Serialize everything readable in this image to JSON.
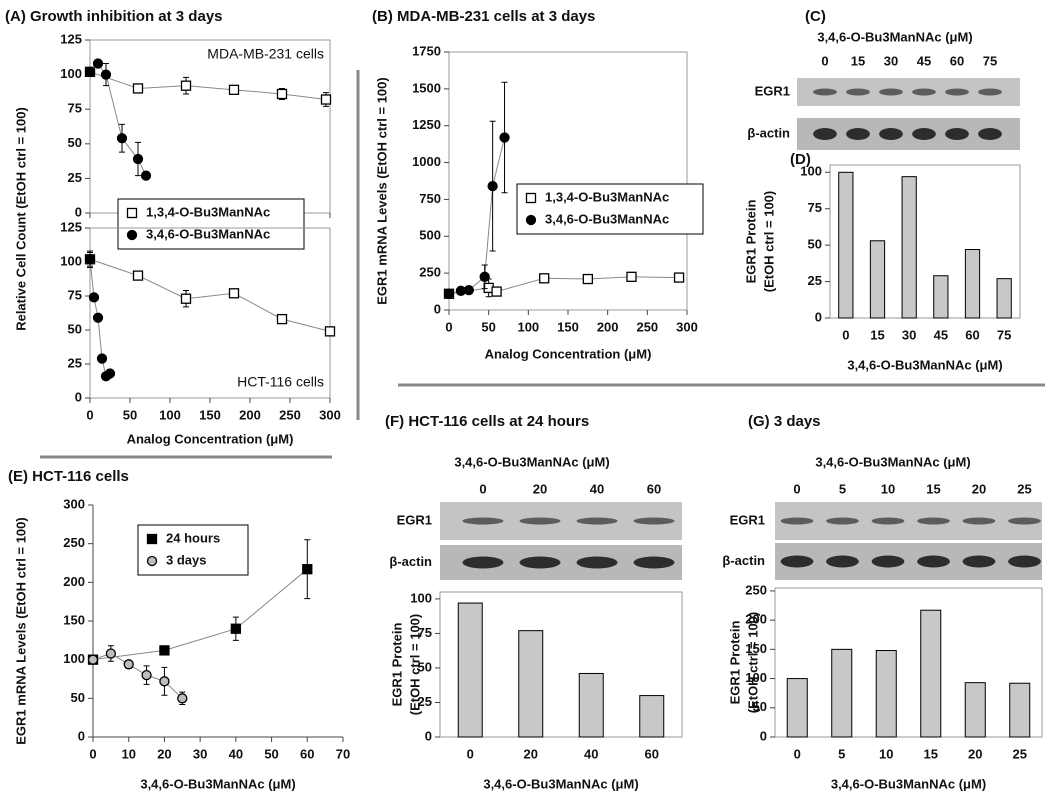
{
  "chart_data": [
    {
      "type": "line-panels",
      "title": "(A) Growth inhibition at 3 days",
      "xlabel": "Analog Concentration (μM)",
      "ylabel": "Relative Cell Count (EtOH ctrl = 100)",
      "xlim": [
        0,
        300
      ],
      "xticks": [
        0,
        50,
        100,
        150,
        200,
        250,
        300
      ],
      "ylim": [
        0,
        125
      ],
      "yticks": [
        0,
        25,
        50,
        75,
        100,
        125
      ],
      "legend": "lower-left",
      "series": [
        {
          "name": "1,3,4-O-Bu3ManNAc",
          "marker": "square",
          "color": "#ffffff"
        },
        {
          "name": "3,4,6-O-Bu3ManNAc",
          "marker": "circle",
          "color": "#000000"
        }
      ],
      "panels": [
        {
          "annotation": "MDA-MB-231 cells",
          "data": [
            {
              "x": [
                0,
                60,
                120,
                180,
                240,
                295
              ],
              "values": [
                102,
                90,
                92,
                89,
                86,
                82
              ],
              "errors": [
                null,
                3,
                6,
                3,
                4,
                5
              ]
            },
            {
              "x": [
                0,
                10,
                20,
                40,
                60,
                70
              ],
              "values": [
                102,
                108,
                100,
                54,
                39,
                27
              ],
              "errors": [
                3,
                2,
                8,
                10,
                12,
                null
              ]
            }
          ]
        },
        {
          "annotation": "HCT-116 cells",
          "data": [
            {
              "x": [
                0,
                60,
                120,
                180,
                240,
                300
              ],
              "values": [
                102,
                90,
                73,
                77,
                58,
                49
              ],
              "errors": [
                5,
                2,
                6,
                3,
                2,
                2
              ]
            },
            {
              "x": [
                0,
                5,
                10,
                15,
                20,
                25
              ],
              "values": [
                102,
                74,
                59,
                29,
                16,
                18
              ],
              "errors": [
                6,
                null,
                null,
                null,
                null,
                null
              ]
            }
          ]
        }
      ]
    },
    {
      "type": "line",
      "title": "(B) MDA-MB-231 cells at 3 days",
      "xlabel": "Analog Concentration (μM)",
      "ylabel": "EGR1 mRNA Levels (EtOH ctrl = 100)",
      "xlim": [
        0,
        300
      ],
      "xticks": [
        0,
        50,
        100,
        150,
        200,
        250,
        300
      ],
      "ylim": [
        0,
        1750
      ],
      "yticks": [
        0,
        250,
        500,
        750,
        1000,
        1250,
        1500,
        1750
      ],
      "legend": "center-right",
      "series": [
        {
          "name": "1,3,4-O-Bu3ManNAc",
          "marker": "square",
          "color": "#ffffff",
          "x": [
            0,
            50,
            60,
            120,
            175,
            230,
            290
          ],
          "values": [
            110,
            150,
            125,
            215,
            210,
            225,
            220
          ],
          "errors": [
            20,
            60,
            null,
            20,
            null,
            20,
            30
          ]
        },
        {
          "name": "3,4,6-O-Bu3ManNAc",
          "marker": "circle",
          "color": "#000000",
          "x": [
            0,
            15,
            25,
            45,
            55,
            70
          ],
          "values": [
            110,
            130,
            135,
            225,
            840,
            1170
          ],
          "errors": [
            20,
            null,
            null,
            80,
            440,
            375
          ]
        }
      ]
    },
    {
      "type": "bar",
      "title": "(D)",
      "ylabel": [
        "EGR1 Protein",
        "(EtOH ctrl = 100)"
      ],
      "xlabel": "3,4,6-O-Bu3ManNAc (μM)",
      "categories": [
        "0",
        "15",
        "30",
        "45",
        "60",
        "75"
      ],
      "values": [
        100,
        53,
        97,
        29,
        47,
        27
      ],
      "color": "#c8c8c8",
      "ylim": [
        0,
        105
      ],
      "yticks": [
        0,
        25,
        50,
        75,
        100
      ]
    },
    {
      "type": "line",
      "title": "(E) HCT-116 cells",
      "xlabel": "3,4,6-O-Bu3ManNAc (μM)",
      "ylabel": "EGR1 mRNA Levels (EtOH ctrl = 100)",
      "xlim": [
        0,
        70
      ],
      "xticks": [
        0,
        10,
        20,
        30,
        40,
        50,
        60,
        70
      ],
      "ylim": [
        0,
        300
      ],
      "yticks": [
        0,
        50,
        100,
        150,
        200,
        250,
        300
      ],
      "legend": "upper-left",
      "series": [
        {
          "name": "24 hours",
          "marker": "square",
          "color": "#000000",
          "x": [
            0,
            20,
            40,
            60
          ],
          "values": [
            100,
            112,
            140,
            217
          ],
          "errors": [
            5,
            5,
            15,
            38
          ]
        },
        {
          "name": "3 days",
          "marker": "circle",
          "color": "#bdbdbd",
          "x": [
            0,
            5,
            10,
            15,
            20,
            25
          ],
          "values": [
            100,
            108,
            94,
            80,
            72,
            50
          ],
          "errors": [
            5,
            10,
            5,
            12,
            18,
            8
          ]
        }
      ]
    },
    {
      "type": "bar",
      "ylabel": [
        "EGR1 Protein",
        "(EtOH ctrl = 100)"
      ],
      "xlabel": "3,4,6-O-Bu3ManNAc (μM)",
      "categories": [
        "0",
        "20",
        "40",
        "60"
      ],
      "values": [
        97,
        77,
        46,
        30
      ],
      "color": "#c8c8c8",
      "ylim": [
        0,
        105
      ],
      "yticks": [
        0,
        25,
        50,
        75,
        100
      ]
    },
    {
      "type": "bar",
      "ylabel": [
        "EGR1 Protein",
        "(EtOH ctrl = 100)"
      ],
      "xlabel": "3,4,6-O-Bu3ManNAc (μM)",
      "categories": [
        "0",
        "5",
        "10",
        "15",
        "20",
        "25"
      ],
      "values": [
        100,
        150,
        148,
        217,
        93,
        92
      ],
      "color": "#c8c8c8",
      "ylim": [
        0,
        255
      ],
      "yticks": [
        0,
        50,
        100,
        150,
        200,
        250
      ]
    }
  ],
  "blots": [
    {
      "title": "(C)",
      "treatment": "3,4,6-O-Bu3ManNAc (μM)",
      "lanes": [
        "0",
        "15",
        "30",
        "45",
        "60",
        "75"
      ],
      "rows": [
        "EGR1",
        "β-actin"
      ]
    },
    {
      "title": "(F) HCT-116 cells at 24 hours",
      "treatment": "3,4,6-O-Bu3ManNAc (μM)",
      "lanes": [
        "0",
        "20",
        "40",
        "60"
      ],
      "rows": [
        "EGR1",
        "β-actin"
      ]
    },
    {
      "title": "(G) 3 days",
      "treatment": "3,4,6-O-Bu3ManNAc (μM)",
      "lanes": [
        "0",
        "5",
        "10",
        "15",
        "20",
        "25"
      ],
      "rows": [
        "EGR1",
        "β-actin"
      ]
    }
  ]
}
